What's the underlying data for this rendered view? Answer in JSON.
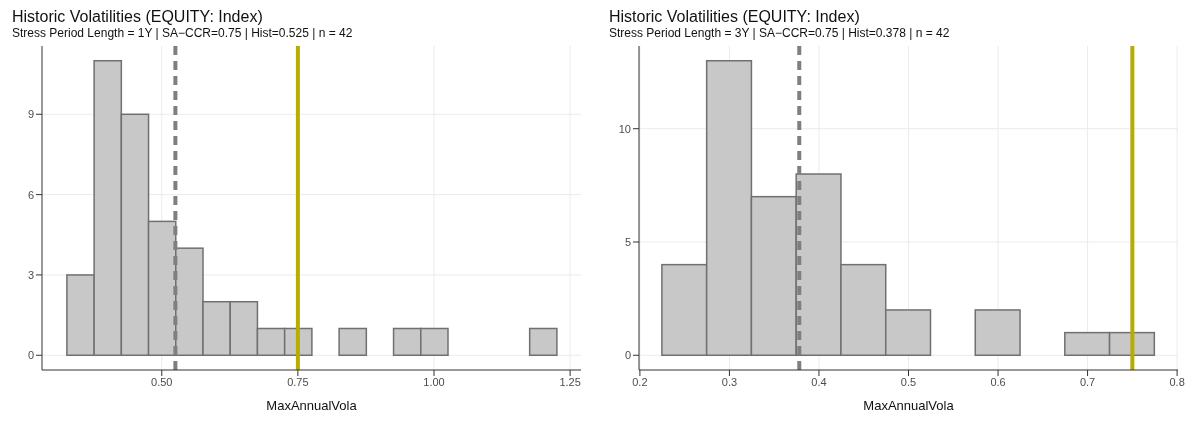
{
  "chart_data": [
    {
      "type": "histogram",
      "title": "Historic Volatilities (EQUITY: Index)",
      "subtitle": "Stress Period Length = 1Y | SA−CCR=0.75 | Hist=0.525 | n = 42",
      "xlabel": "MaxAnnualVola",
      "color": "#c8c8c8",
      "bins": [
        0.325,
        0.375,
        0.425,
        0.475,
        0.525,
        0.575,
        0.625,
        0.675,
        0.725,
        0.775,
        0.825,
        0.875,
        0.925,
        0.975,
        1.025,
        1.075,
        1.125,
        1.175,
        1.225
      ],
      "values": [
        3,
        11,
        9,
        5,
        4,
        2,
        2,
        1,
        1,
        0,
        1,
        0,
        1,
        1,
        0,
        0,
        0,
        1
      ],
      "xlim": [
        0.28,
        1.27
      ],
      "xticks": [
        {
          "value": 0.5,
          "label": "0.50"
        },
        {
          "value": 0.75,
          "label": "0.75"
        },
        {
          "value": 1.0,
          "label": "1.00"
        },
        {
          "value": 1.25,
          "label": "1.25"
        }
      ],
      "ylim": [
        -0.55,
        11.55
      ],
      "yticks": [
        0,
        3,
        6,
        9
      ],
      "grid": true,
      "legend": false,
      "ref_lines": [
        {
          "axis": "x",
          "value": 0.525,
          "color": "#7f7f7f",
          "line_style": "dashed"
        },
        {
          "axis": "x",
          "value": 0.75,
          "color": "#b5ad00",
          "line_style": "solid"
        }
      ]
    },
    {
      "type": "histogram",
      "title": "Historic Volatilities (EQUITY: Index)",
      "subtitle": "Stress Period Length = 3Y | SA−CCR=0.75 | Hist=0.378 | n = 42",
      "xlabel": "MaxAnnualVola",
      "color": "#c8c8c8",
      "bins": [
        0.225,
        0.275,
        0.325,
        0.375,
        0.425,
        0.475,
        0.525,
        0.575,
        0.625,
        0.675,
        0.725,
        0.775
      ],
      "values": [
        4,
        13,
        7,
        8,
        4,
        2,
        0,
        2,
        0,
        1,
        1
      ],
      "xlim": [
        0.199,
        0.801
      ],
      "xticks": [
        0.2,
        0.3,
        0.4,
        0.5,
        0.6,
        0.7,
        0.8
      ],
      "ylim": [
        -0.65,
        13.65
      ],
      "yticks": [
        0,
        5,
        10
      ],
      "grid": true,
      "legend": false,
      "ref_lines": [
        {
          "axis": "x",
          "value": 0.378,
          "color": "#7f7f7f",
          "line_style": "dashed"
        },
        {
          "axis": "x",
          "value": 0.75,
          "color": "#b5ad00",
          "line_style": "solid"
        }
      ]
    }
  ]
}
